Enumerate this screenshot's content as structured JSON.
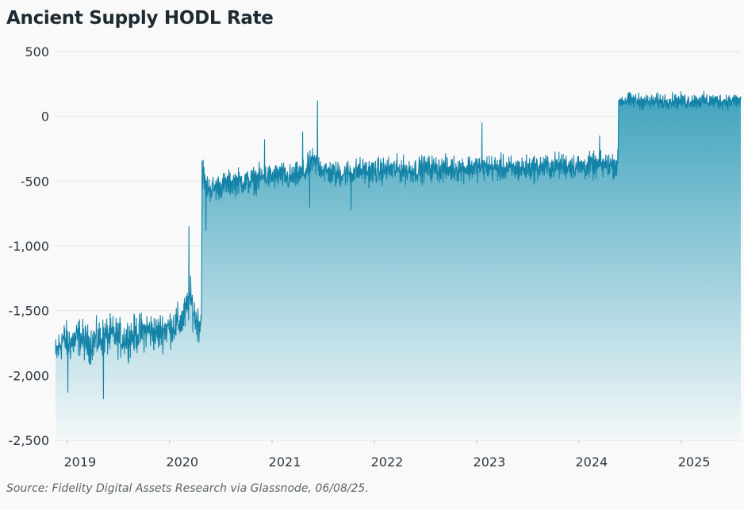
{
  "chart_data": {
    "type": "area",
    "title": "Ancient Supply HODL Rate",
    "xlabel": "",
    "ylabel": "",
    "ylim": [
      -2500,
      500
    ],
    "xlim": [
      "2018-11-20",
      "2025-08-01"
    ],
    "y_ticks": [
      500,
      0,
      -500,
      -1000,
      -1500,
      -2000,
      -2500
    ],
    "y_tick_labels": [
      "500",
      "0",
      "-500",
      "-1,000",
      "-1,500",
      "-2,000",
      "-2,500"
    ],
    "x_ticks": [
      "2019-01-01",
      "2020-01-01",
      "2021-01-01",
      "2022-01-01",
      "2023-01-01",
      "2024-01-01",
      "2025-01-01"
    ],
    "x_tick_labels": [
      "2019",
      "2020",
      "2021",
      "2022",
      "2023",
      "2024",
      "2025"
    ],
    "grid": true,
    "legend": "none",
    "colors": {
      "line": "#1483a8",
      "fill_top": "#3fa3bd",
      "fill_bottom": "#f4f8f9",
      "grid": "#e3e3e3"
    },
    "series": [
      {
        "points": [
          [
            "2018-11-20",
            -1850
          ],
          [
            "2018-12-15",
            -1720
          ],
          [
            "2019-01-15",
            -1750
          ],
          [
            "2019-02-15",
            -1700
          ],
          [
            "2019-03-15",
            -1760
          ],
          [
            "2019-04-15",
            -1730
          ],
          [
            "2019-05-15",
            -1700
          ],
          [
            "2019-06-15",
            -1690
          ],
          [
            "2019-07-15",
            -1720
          ],
          [
            "2019-08-15",
            -1700
          ],
          [
            "2019-09-15",
            -1670
          ],
          [
            "2019-10-15",
            -1650
          ],
          [
            "2019-11-15",
            -1680
          ],
          [
            "2019-12-15",
            -1640
          ],
          [
            "2020-01-15",
            -1620
          ],
          [
            "2020-02-15",
            -1580
          ],
          [
            "2020-03-01",
            -1500
          ],
          [
            "2020-03-15",
            -1400
          ],
          [
            "2020-04-01",
            -1550
          ],
          [
            "2020-04-15",
            -1600
          ],
          [
            "2020-04-24",
            -1550
          ],
          [
            "2020-04-26",
            -400
          ],
          [
            "2020-05-10",
            -550
          ],
          [
            "2020-06-01",
            -560
          ],
          [
            "2020-07-01",
            -540
          ],
          [
            "2020-08-01",
            -520
          ],
          [
            "2020-09-01",
            -500
          ],
          [
            "2020-10-01",
            -510
          ],
          [
            "2020-11-01",
            -490
          ],
          [
            "2020-12-01",
            -470
          ],
          [
            "2021-01-01",
            -470
          ],
          [
            "2021-02-01",
            -450
          ],
          [
            "2021-03-01",
            -480
          ],
          [
            "2021-04-01",
            -460
          ],
          [
            "2021-05-01",
            -430
          ],
          [
            "2021-05-20",
            -350
          ],
          [
            "2021-06-15",
            -380
          ],
          [
            "2021-07-15",
            -430
          ],
          [
            "2021-08-15",
            -450
          ],
          [
            "2021-09-15",
            -440
          ],
          [
            "2021-10-15",
            -430
          ],
          [
            "2021-11-15",
            -420
          ],
          [
            "2021-12-15",
            -430
          ],
          [
            "2022-01-15",
            -420
          ],
          [
            "2022-03-15",
            -410
          ],
          [
            "2022-05-15",
            -420
          ],
          [
            "2022-07-15",
            -400
          ],
          [
            "2022-09-15",
            -410
          ],
          [
            "2022-11-15",
            -400
          ],
          [
            "2023-01-15",
            -390
          ],
          [
            "2023-03-15",
            -400
          ],
          [
            "2023-05-15",
            -410
          ],
          [
            "2023-07-15",
            -400
          ],
          [
            "2023-09-15",
            -390
          ],
          [
            "2023-11-15",
            -380
          ],
          [
            "2024-01-15",
            -390
          ],
          [
            "2024-03-15",
            -380
          ],
          [
            "2024-05-20",
            -370
          ],
          [
            "2024-05-22",
            120
          ],
          [
            "2024-07-15",
            120
          ],
          [
            "2024-09-15",
            110
          ],
          [
            "2024-11-15",
            120
          ],
          [
            "2025-01-15",
            115
          ],
          [
            "2025-03-15",
            120
          ],
          [
            "2025-05-15",
            115
          ],
          [
            "2025-08-01",
            120
          ]
        ],
        "spikes": [
          [
            "2020-03-10",
            -850
          ],
          [
            "2021-06-12",
            120
          ],
          [
            "2021-04-20",
            -120
          ],
          [
            "2020-12-05",
            -180
          ],
          [
            "2023-01-20",
            -50
          ],
          [
            "2024-03-15",
            -150
          ],
          [
            "2019-05-10",
            -2180
          ],
          [
            "2019-01-03",
            -2130
          ],
          [
            "2020-05-10",
            -880
          ],
          [
            "2021-05-15",
            -700
          ],
          [
            "2021-10-10",
            -720
          ]
        ]
      }
    ]
  },
  "footer": {
    "source": "Source: Fidelity Digital Assets Research via Glassnode, 06/08/25."
  }
}
